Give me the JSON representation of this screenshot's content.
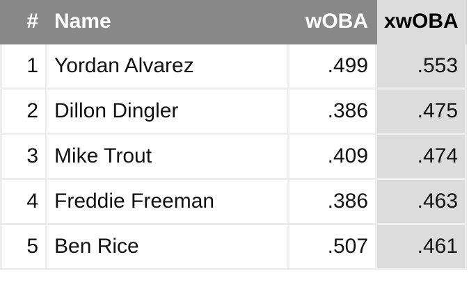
{
  "headers": [
    "#",
    "Name",
    "wOBA",
    "xwOBA"
  ],
  "highlight_color": "#dcdcdc",
  "header_color": "#888888",
  "rows": [
    {
      "rank": "1",
      "name": "Yordan Alvarez",
      "woba": ".499",
      "xwoba": ".553"
    },
    {
      "rank": "2",
      "name": "Dillon Dingler",
      "woba": ".386",
      "xwoba": ".475"
    },
    {
      "rank": "3",
      "name": "Mike Trout",
      "woba": ".409",
      "xwoba": ".474"
    },
    {
      "rank": "4",
      "name": "Freddie Freeman",
      "woba": ".386",
      "xwoba": ".463"
    },
    {
      "rank": "5",
      "name": "Ben Rice",
      "woba": ".507",
      "xwoba": ".461"
    }
  ]
}
